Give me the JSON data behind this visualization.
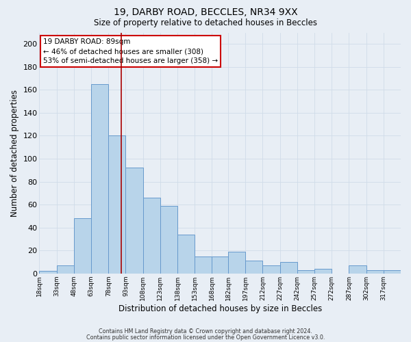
{
  "title1": "19, DARBY ROAD, BECCLES, NR34 9XX",
  "title2": "Size of property relative to detached houses in Beccles",
  "xlabel": "Distribution of detached houses by size in Beccles",
  "ylabel": "Number of detached properties",
  "bar_values": [
    2,
    7,
    48,
    165,
    120,
    92,
    66,
    59,
    34,
    15,
    15,
    19,
    11,
    7,
    10,
    3,
    4,
    0,
    7,
    3,
    3
  ],
  "bin_edges": [
    18,
    33,
    48,
    63,
    78,
    93,
    108,
    123,
    138,
    153,
    168,
    182,
    197,
    212,
    227,
    242,
    257,
    272,
    287,
    302,
    317,
    332
  ],
  "tick_labels": [
    "18sqm",
    "33sqm",
    "48sqm",
    "63sqm",
    "78sqm",
    "93sqm",
    "108sqm",
    "123sqm",
    "138sqm",
    "153sqm",
    "168sqm",
    "182sqm",
    "197sqm",
    "212sqm",
    "227sqm",
    "242sqm",
    "257sqm",
    "272sqm",
    "287sqm",
    "302sqm",
    "317sqm"
  ],
  "bar_color": "#b8d4ea",
  "bar_edge_color": "#6699cc",
  "vline_x": 89,
  "vline_color": "#aa0000",
  "ylim": [
    0,
    210
  ],
  "yticks": [
    0,
    20,
    40,
    60,
    80,
    100,
    120,
    140,
    160,
    180,
    200
  ],
  "annotation_title": "19 DARBY ROAD: 89sqm",
  "annotation_line1": "← 46% of detached houses are smaller (308)",
  "annotation_line2": "53% of semi-detached houses are larger (358) →",
  "annotation_box_color": "#ffffff",
  "annotation_box_edge": "#cc0000",
  "grid_color": "#d0dce8",
  "bg_color": "#e8eef5",
  "footer1": "Contains HM Land Registry data © Crown copyright and database right 2024.",
  "footer2": "Contains public sector information licensed under the Open Government Licence v3.0."
}
